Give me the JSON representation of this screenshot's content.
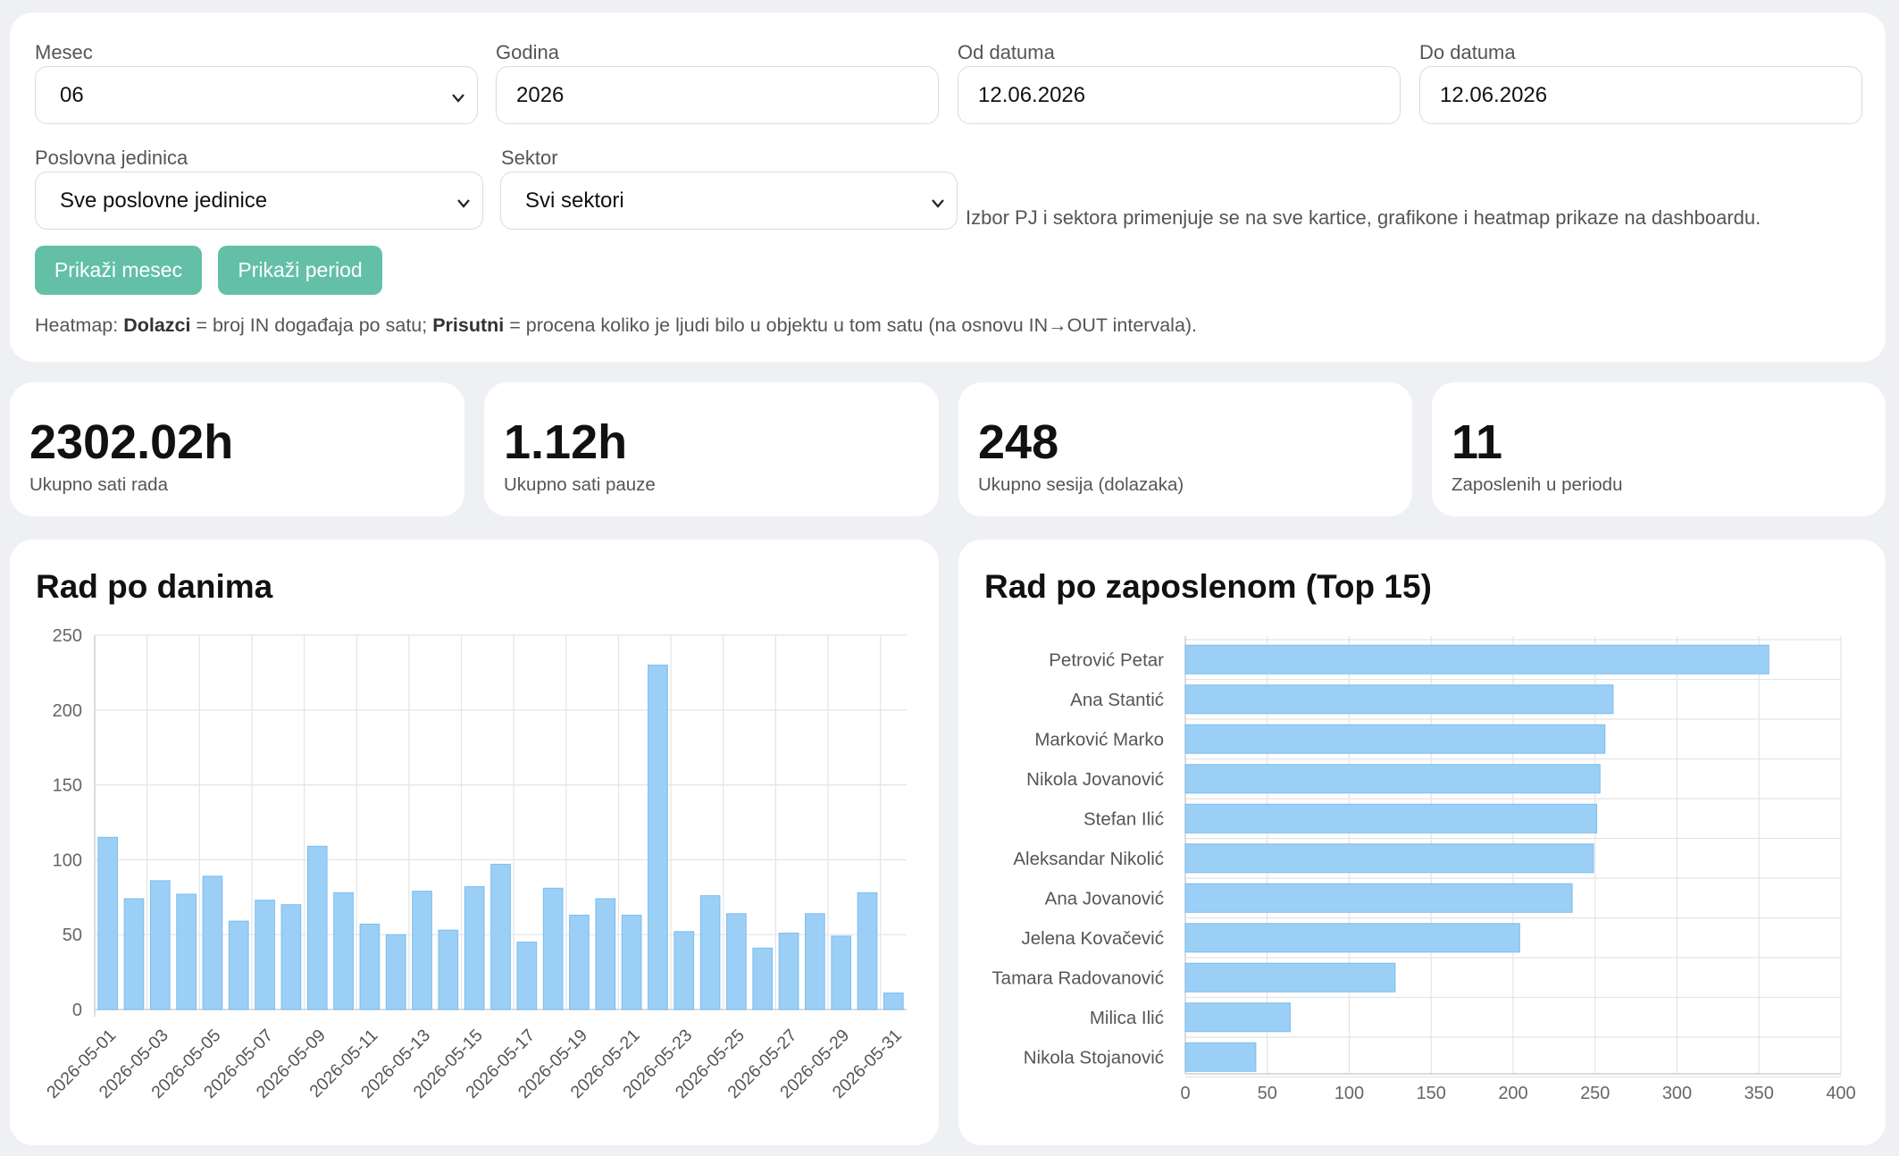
{
  "filters": {
    "month_label": "Mesec",
    "month_value": "06",
    "year_label": "Godina",
    "year_value": "2026",
    "from_label": "Od datuma",
    "from_value": "12.06.2026",
    "to_label": "Do datuma",
    "to_value": "12.06.2026",
    "unit_label": "Poslovna jedinica",
    "unit_value": "Sve poslovne jedinice",
    "sector_label": "Sektor",
    "sector_value": "Svi sektori",
    "scope_note": "Izbor PJ i sektora primenjuje se na sve kartice, grafikone i heatmap prikaze na dashboardu.",
    "show_month_button": "Prikaži mesec",
    "show_period_button": "Prikaži period",
    "heatmap_prefix": "Heatmap: ",
    "heatmap_term1": "Dolazci",
    "heatmap_text1": " = broj IN događaja po satu; ",
    "heatmap_term2": "Prisutni",
    "heatmap_text2": " = procena koliko je ljudi bilo u objektu u tom satu (na osnovu IN→OUT intervala)."
  },
  "stats": [
    {
      "value": "2302.02h",
      "label": "Ukupno sati rada"
    },
    {
      "value": "1.12h",
      "label": "Ukupno sati pauze"
    },
    {
      "value": "248",
      "label": "Ukupno sesija (dolazaka)"
    },
    {
      "value": "11",
      "label": "Zaposlenih u periodu"
    }
  ],
  "colors": {
    "bar_fill": "#9bcff5",
    "bar_stroke": "#7dbdf0",
    "button": "#63c0a7",
    "grid": "#e4e4e4"
  },
  "chart_data": [
    {
      "type": "bar",
      "title": "Rad po danima",
      "categories": [
        "2026-05-01",
        "2026-05-02",
        "2026-05-03",
        "2026-05-04",
        "2026-05-05",
        "2026-05-06",
        "2026-05-07",
        "2026-05-08",
        "2026-05-09",
        "2026-05-10",
        "2026-05-11",
        "2026-05-12",
        "2026-05-13",
        "2026-05-14",
        "2026-05-15",
        "2026-05-16",
        "2026-05-17",
        "2026-05-18",
        "2026-05-19",
        "2026-05-20",
        "2026-05-21",
        "2026-05-22",
        "2026-05-23",
        "2026-05-24",
        "2026-05-25",
        "2026-05-26",
        "2026-05-27",
        "2026-05-28",
        "2026-05-29",
        "2026-05-30",
        "2026-05-31"
      ],
      "tick_labels": [
        "2026-05-01",
        "2026-05-03",
        "2026-05-05",
        "2026-05-07",
        "2026-05-09",
        "2026-05-11",
        "2026-05-13",
        "2026-05-15",
        "2026-05-17",
        "2026-05-19",
        "2026-05-21",
        "2026-05-23",
        "2026-05-25",
        "2026-05-27",
        "2026-05-29",
        "2026-05-31"
      ],
      "values": [
        115,
        74,
        86,
        77,
        89,
        59,
        73,
        70,
        109,
        78,
        57,
        50,
        79,
        53,
        82,
        97,
        45,
        81,
        63,
        74,
        63,
        230,
        52,
        76,
        64,
        41,
        51,
        64,
        49,
        78,
        11
      ],
      "ylim": [
        0,
        250
      ],
      "yticks": [
        0,
        50,
        100,
        150,
        200,
        250
      ],
      "grid": true,
      "legend": false
    },
    {
      "type": "bar",
      "orientation": "horizontal",
      "title": "Rad po zaposlenom (Top 15)",
      "categories": [
        "Petrović Petar",
        "Ana Stantić",
        "Marković Marko",
        "Nikola Jovanović",
        "Stefan Ilić",
        "Aleksandar Nikolić",
        "Ana Jovanović",
        "Jelena Kovačević",
        "Tamara Radovanović",
        "Milica Ilić",
        "Nikola Stojanović"
      ],
      "values": [
        356,
        261,
        256,
        253,
        251,
        249,
        236,
        204,
        128,
        64,
        43
      ],
      "xlim": [
        0,
        400
      ],
      "xticks": [
        0,
        50,
        100,
        150,
        200,
        250,
        300,
        350,
        400
      ],
      "grid": true,
      "legend": false
    }
  ]
}
